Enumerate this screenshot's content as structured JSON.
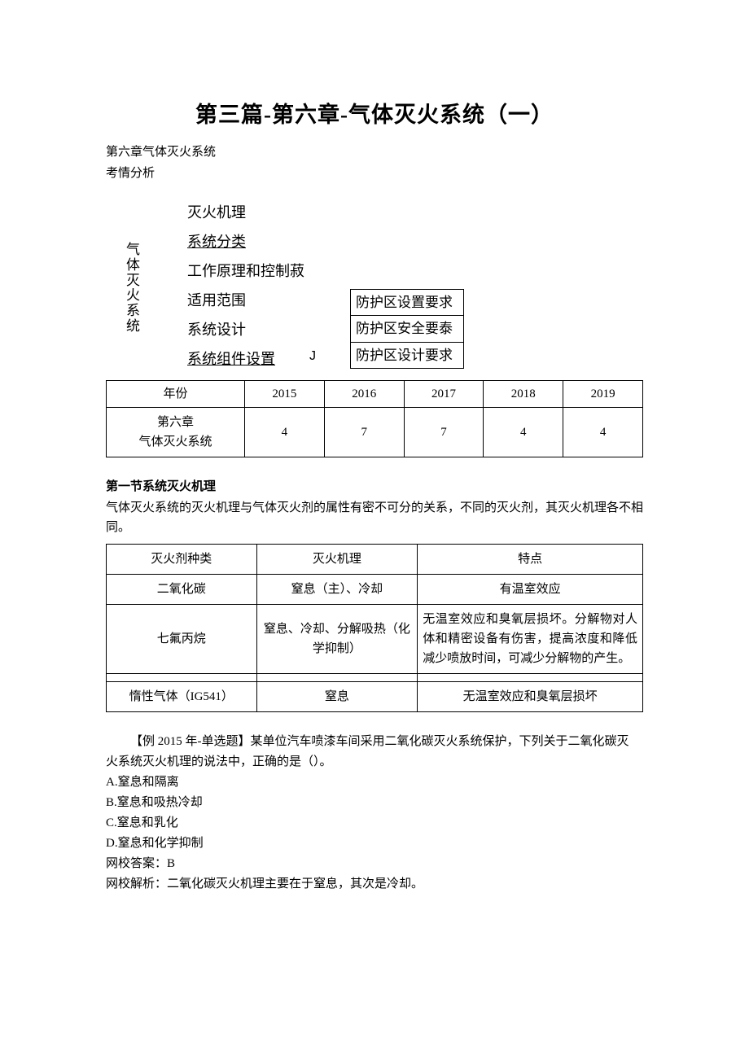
{
  "title": "第三篇-第六章-气体灭火系统（一）",
  "chapter_line": "第六章气体灭火系统",
  "exam_line": "考情分析",
  "outline": {
    "vertical_label": "气体灭火系统",
    "items": [
      {
        "text": "灭火机理",
        "underline": false
      },
      {
        "text": "系统分类",
        "underline": true
      },
      {
        "text": "工作原理和控制菽",
        "underline": false
      },
      {
        "text": "适用范围",
        "underline": false
      },
      {
        "text": "系统设计",
        "underline": false
      },
      {
        "text": "系统组件设置",
        "underline": true
      }
    ],
    "j": "J",
    "boxes": [
      "防护区设置要求",
      "防护区安全要泰",
      "防护区设计要求"
    ]
  },
  "year_table": {
    "headers": [
      "年份",
      "2015",
      "2016",
      "2017",
      "2018",
      "2019"
    ],
    "row_label": "第六章\n气体灭火系统",
    "values": [
      "4",
      "7",
      "7",
      "4",
      "4"
    ]
  },
  "section1": {
    "head": "第一节系统灭火机理",
    "para": "气体灭火系统的灭火机理与气体灭火剂的属性有密不可分的关系，不同的灭火剂，其灭火机理各不相同。"
  },
  "mech_table": {
    "headers": [
      "灭火剂种类",
      "灭火机理",
      "特点"
    ],
    "rows": [
      {
        "a": "二氧化碳",
        "b": "窒息（主）、冷却",
        "c": "有温室效应"
      },
      {
        "a": "七氟丙烷",
        "b": "窒息、冷却、分解吸热（化学抑制）",
        "c": "无温室效应和臭氧层损坏。分解物对人体和精密设备有伤害，提高浓度和降低减少喷放时间，可减少分解物的产生。"
      },
      {
        "a": "惰性气体（IG541）",
        "b": "窒息",
        "c": "无温室效应和臭氧层损坏"
      }
    ]
  },
  "question": {
    "stem1": "【例 2015 年-单选题】某单位汽车喷漆车间采用二氧化碳灭火系统保护，下列关于二氧化碳灭",
    "stem2": "火系统灭火机理的说法中，正确的是（）。",
    "opts": [
      "A.窒息和隔离",
      "B.窒息和吸热冷却",
      "C.窒息和乳化",
      "D.窒息和化学抑制"
    ],
    "ans": "网校答案：B",
    "exp": "网校解析：二氧化碳灭火机理主要在于窒息，其次是冷却。"
  }
}
